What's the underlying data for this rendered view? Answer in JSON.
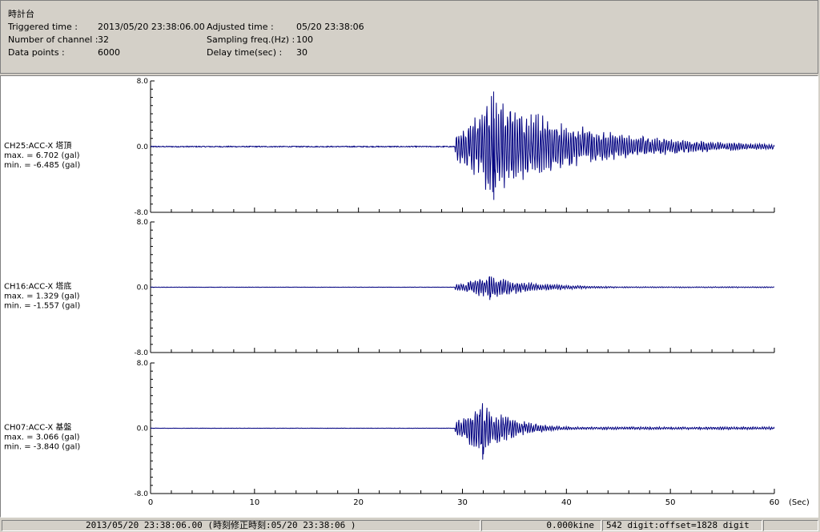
{
  "header": {
    "title": "時計台",
    "fields": [
      {
        "label": "Triggered time :",
        "value": "2013/05/20 23:38:06.00"
      },
      {
        "label": "Number of channel :",
        "value": "32"
      },
      {
        "label": "Data points :",
        "value": "6000"
      },
      {
        "label": "Adjusted time :",
        "value": "05/20 23:38:06"
      },
      {
        "label": "Sampling freq.(Hz) :",
        "value": "100"
      },
      {
        "label": "Delay time(sec) :",
        "value": "30"
      }
    ]
  },
  "chart_data": {
    "type": "line",
    "xlabel": "(Sec)",
    "xlim": [
      0,
      60
    ],
    "xticks": [
      "0",
      "10",
      "20",
      "30",
      "40",
      "50",
      "60"
    ],
    "channels": [
      {
        "name": "CH25:ACC-X 塔頂",
        "max_text": "max. = 6.702 (gal)",
        "min_text": "min. = -6.485 (gal)",
        "max": 6.702,
        "min": -6.485,
        "ylim": [
          -8.0,
          8.0
        ],
        "yticks": [
          "8.0",
          "0.0",
          "-8.0"
        ],
        "onset": 29.3,
        "peak_time": 33.0,
        "decay": 9.0
      },
      {
        "name": "CH16:ACC-X 塔底",
        "max_text": "max. = 1.329 (gal)",
        "min_text": "min. = -1.557 (gal)",
        "max": 1.329,
        "min": -1.557,
        "ylim": [
          -8.0,
          8.0
        ],
        "yticks": [
          "8.0",
          "0.0",
          "-8.0"
        ],
        "onset": 29.3,
        "peak_time": 32.6,
        "decay": 4.5
      },
      {
        "name": "CH07:ACC-X 基盤",
        "max_text": "max. = 3.066 (gal)",
        "min_text": "min. = -3.840 (gal)",
        "max": 3.066,
        "min": -3.84,
        "ylim": [
          -8.0,
          8.0
        ],
        "yticks": [
          "8.0",
          "0.0",
          "-8.0"
        ],
        "onset": 29.3,
        "peak_time": 31.9,
        "decay": 3.0
      }
    ],
    "line_color": "#000080"
  },
  "status": {
    "time": "2013/05/20 23:38:06.00  (時刻修正時刻:05/20 23:38:06  )",
    "velocity": "0.000kine",
    "digit": "542 digit:offset=1828 digit"
  }
}
